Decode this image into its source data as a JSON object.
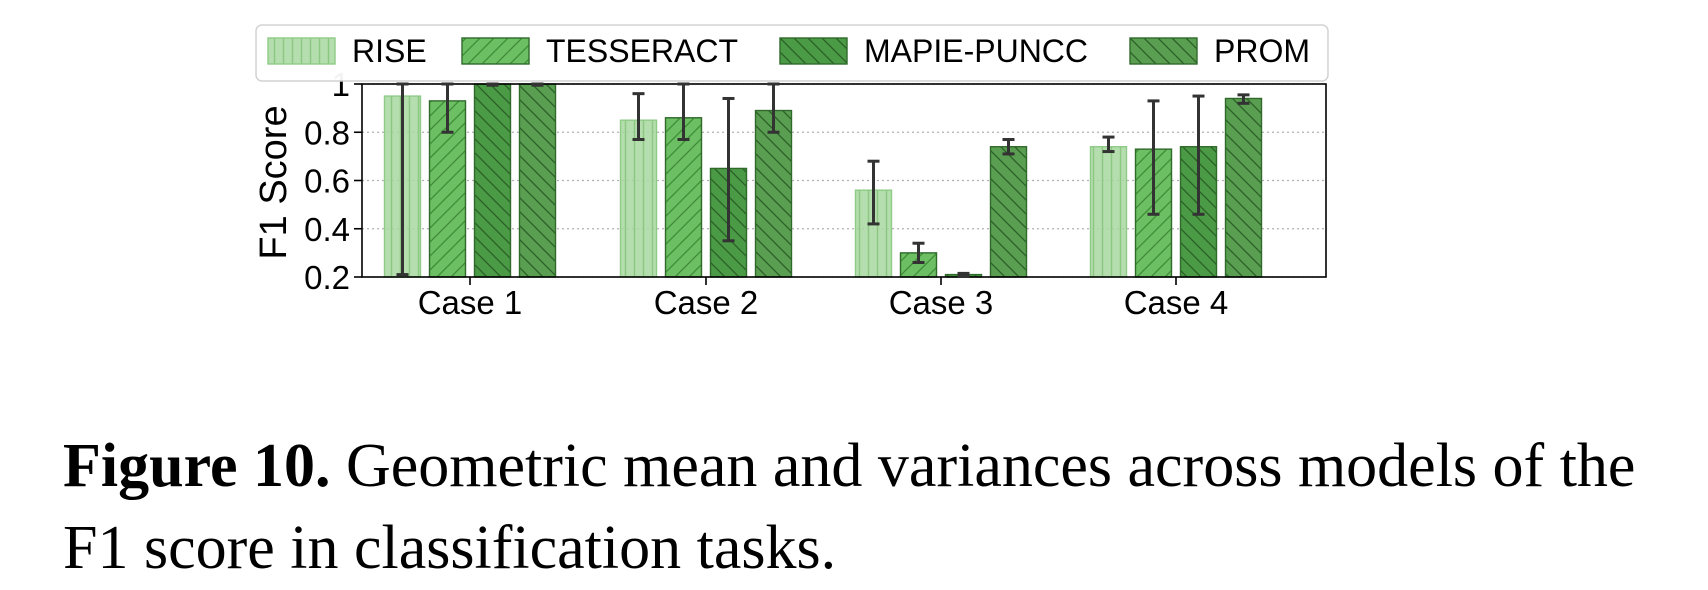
{
  "chart_data": {
    "type": "bar",
    "categories": [
      "Case 1",
      "Case 2",
      "Case 3",
      "Case 4"
    ],
    "ylabel": "F1 Score",
    "xlabel": "",
    "ylim": [
      0.2,
      1.0
    ],
    "yticks": [
      0.2,
      0.4,
      0.6,
      0.8,
      1
    ],
    "ytick_labels": [
      "0.2",
      "0.4",
      "0.6",
      "0.8",
      "1"
    ],
    "grid": "horizontal-dotted",
    "legend_position": "top",
    "series": [
      {
        "name": "RISE",
        "values": [
          0.95,
          0.85,
          0.56,
          0.74
        ],
        "err_low": [
          0.21,
          0.77,
          0.42,
          0.72
        ],
        "err_high": [
          1.0,
          0.96,
          0.68,
          0.78
        ],
        "color": "#a8d8a0",
        "hatch": "vertical"
      },
      {
        "name": "TESSERACT",
        "values": [
          0.93,
          0.86,
          0.3,
          0.73
        ],
        "err_low": [
          0.8,
          0.77,
          0.26,
          0.46
        ],
        "err_high": [
          1.0,
          1.0,
          0.34,
          0.93
        ],
        "color": "#6cbf62",
        "hatch": "forward"
      },
      {
        "name": "MAPIE-PUNCC",
        "values": [
          1.0,
          0.65,
          0.21,
          0.74
        ],
        "err_low": [
          0.995,
          0.35,
          0.205,
          0.46
        ],
        "err_high": [
          1.0,
          0.94,
          0.215,
          0.95
        ],
        "color": "#4b9a45",
        "hatch": "back"
      },
      {
        "name": "PROM",
        "values": [
          1.0,
          0.89,
          0.74,
          0.94
        ],
        "err_low": [
          0.995,
          0.8,
          0.71,
          0.92
        ],
        "err_high": [
          1.0,
          1.0,
          0.77,
          0.955
        ],
        "color": "#5a9e52",
        "hatch": "back"
      }
    ]
  },
  "caption": {
    "label": "Figure 10.",
    "text": " Geometric mean and variances across models of the F1 score in classification tasks."
  }
}
